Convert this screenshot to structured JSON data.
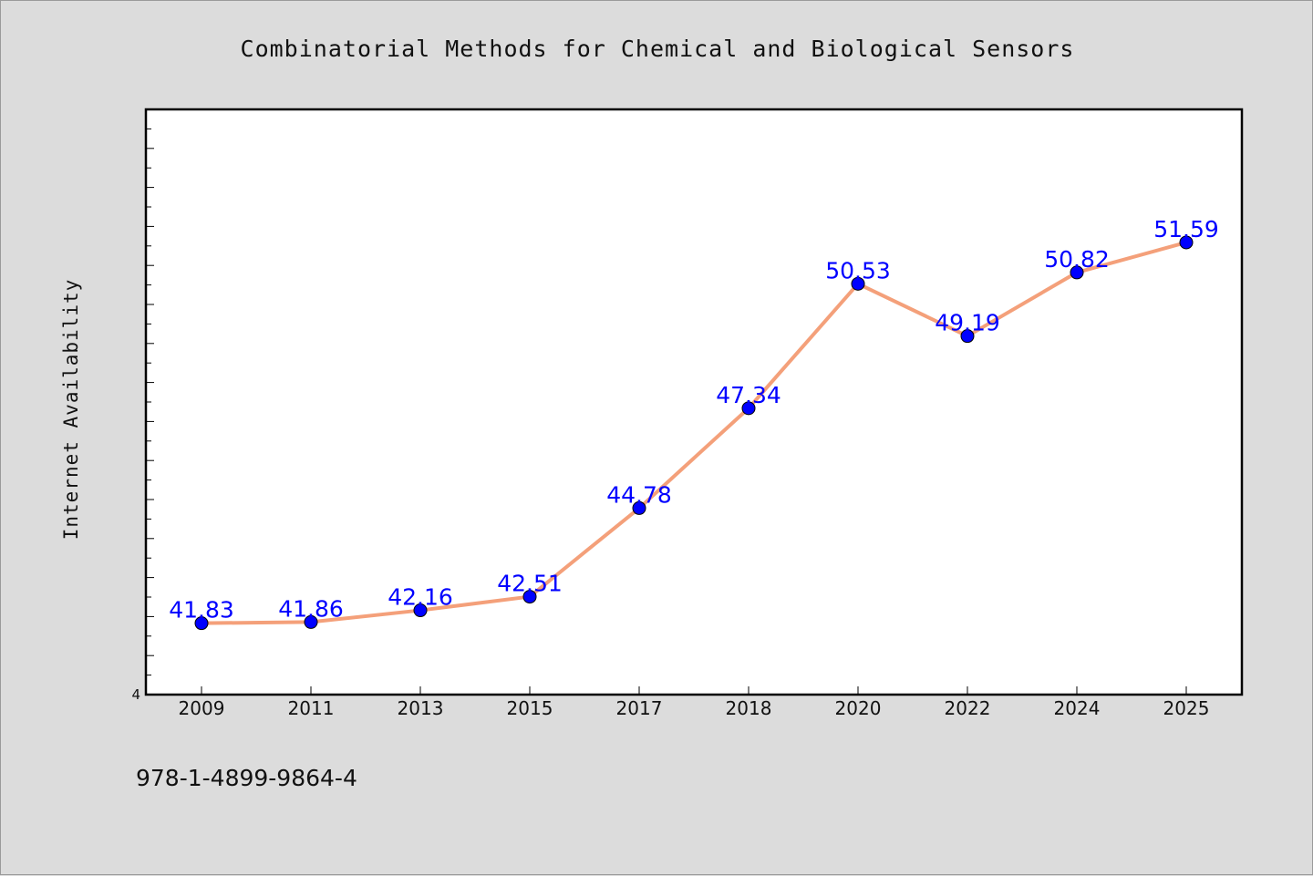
{
  "chart_data": {
    "type": "line",
    "title": "Combinatorial Methods for Chemical and Biological Sensors",
    "xlabel": "",
    "ylabel": "Internet Availability",
    "categories": [
      "2009",
      "2011",
      "2013",
      "2015",
      "2017",
      "2018",
      "2020",
      "2022",
      "2024",
      "2025"
    ],
    "series": [
      {
        "values": [
          41.83,
          41.86,
          42.16,
          42.51,
          44.78,
          47.34,
          50.53,
          49.19,
          50.82,
          51.59
        ]
      }
    ],
    "data_labels": [
      "41.83",
      "41.86",
      "42.16",
      "42.51",
      "44.78",
      "47.34",
      "50.53",
      "49.19",
      "50.82",
      "51.59"
    ],
    "ylim": [
      40.0,
      55.0
    ],
    "y_tick_labels_shown": [
      "4"
    ],
    "grid": false,
    "legend": "none",
    "colors": {
      "line": "#f4a07a",
      "marker": "#0000ff",
      "data_label": "#0000ff",
      "background": "#dcdcdc",
      "plot_area": "#ffffff"
    }
  },
  "footer": {
    "isbn": "978-1-4899-9864-4"
  }
}
